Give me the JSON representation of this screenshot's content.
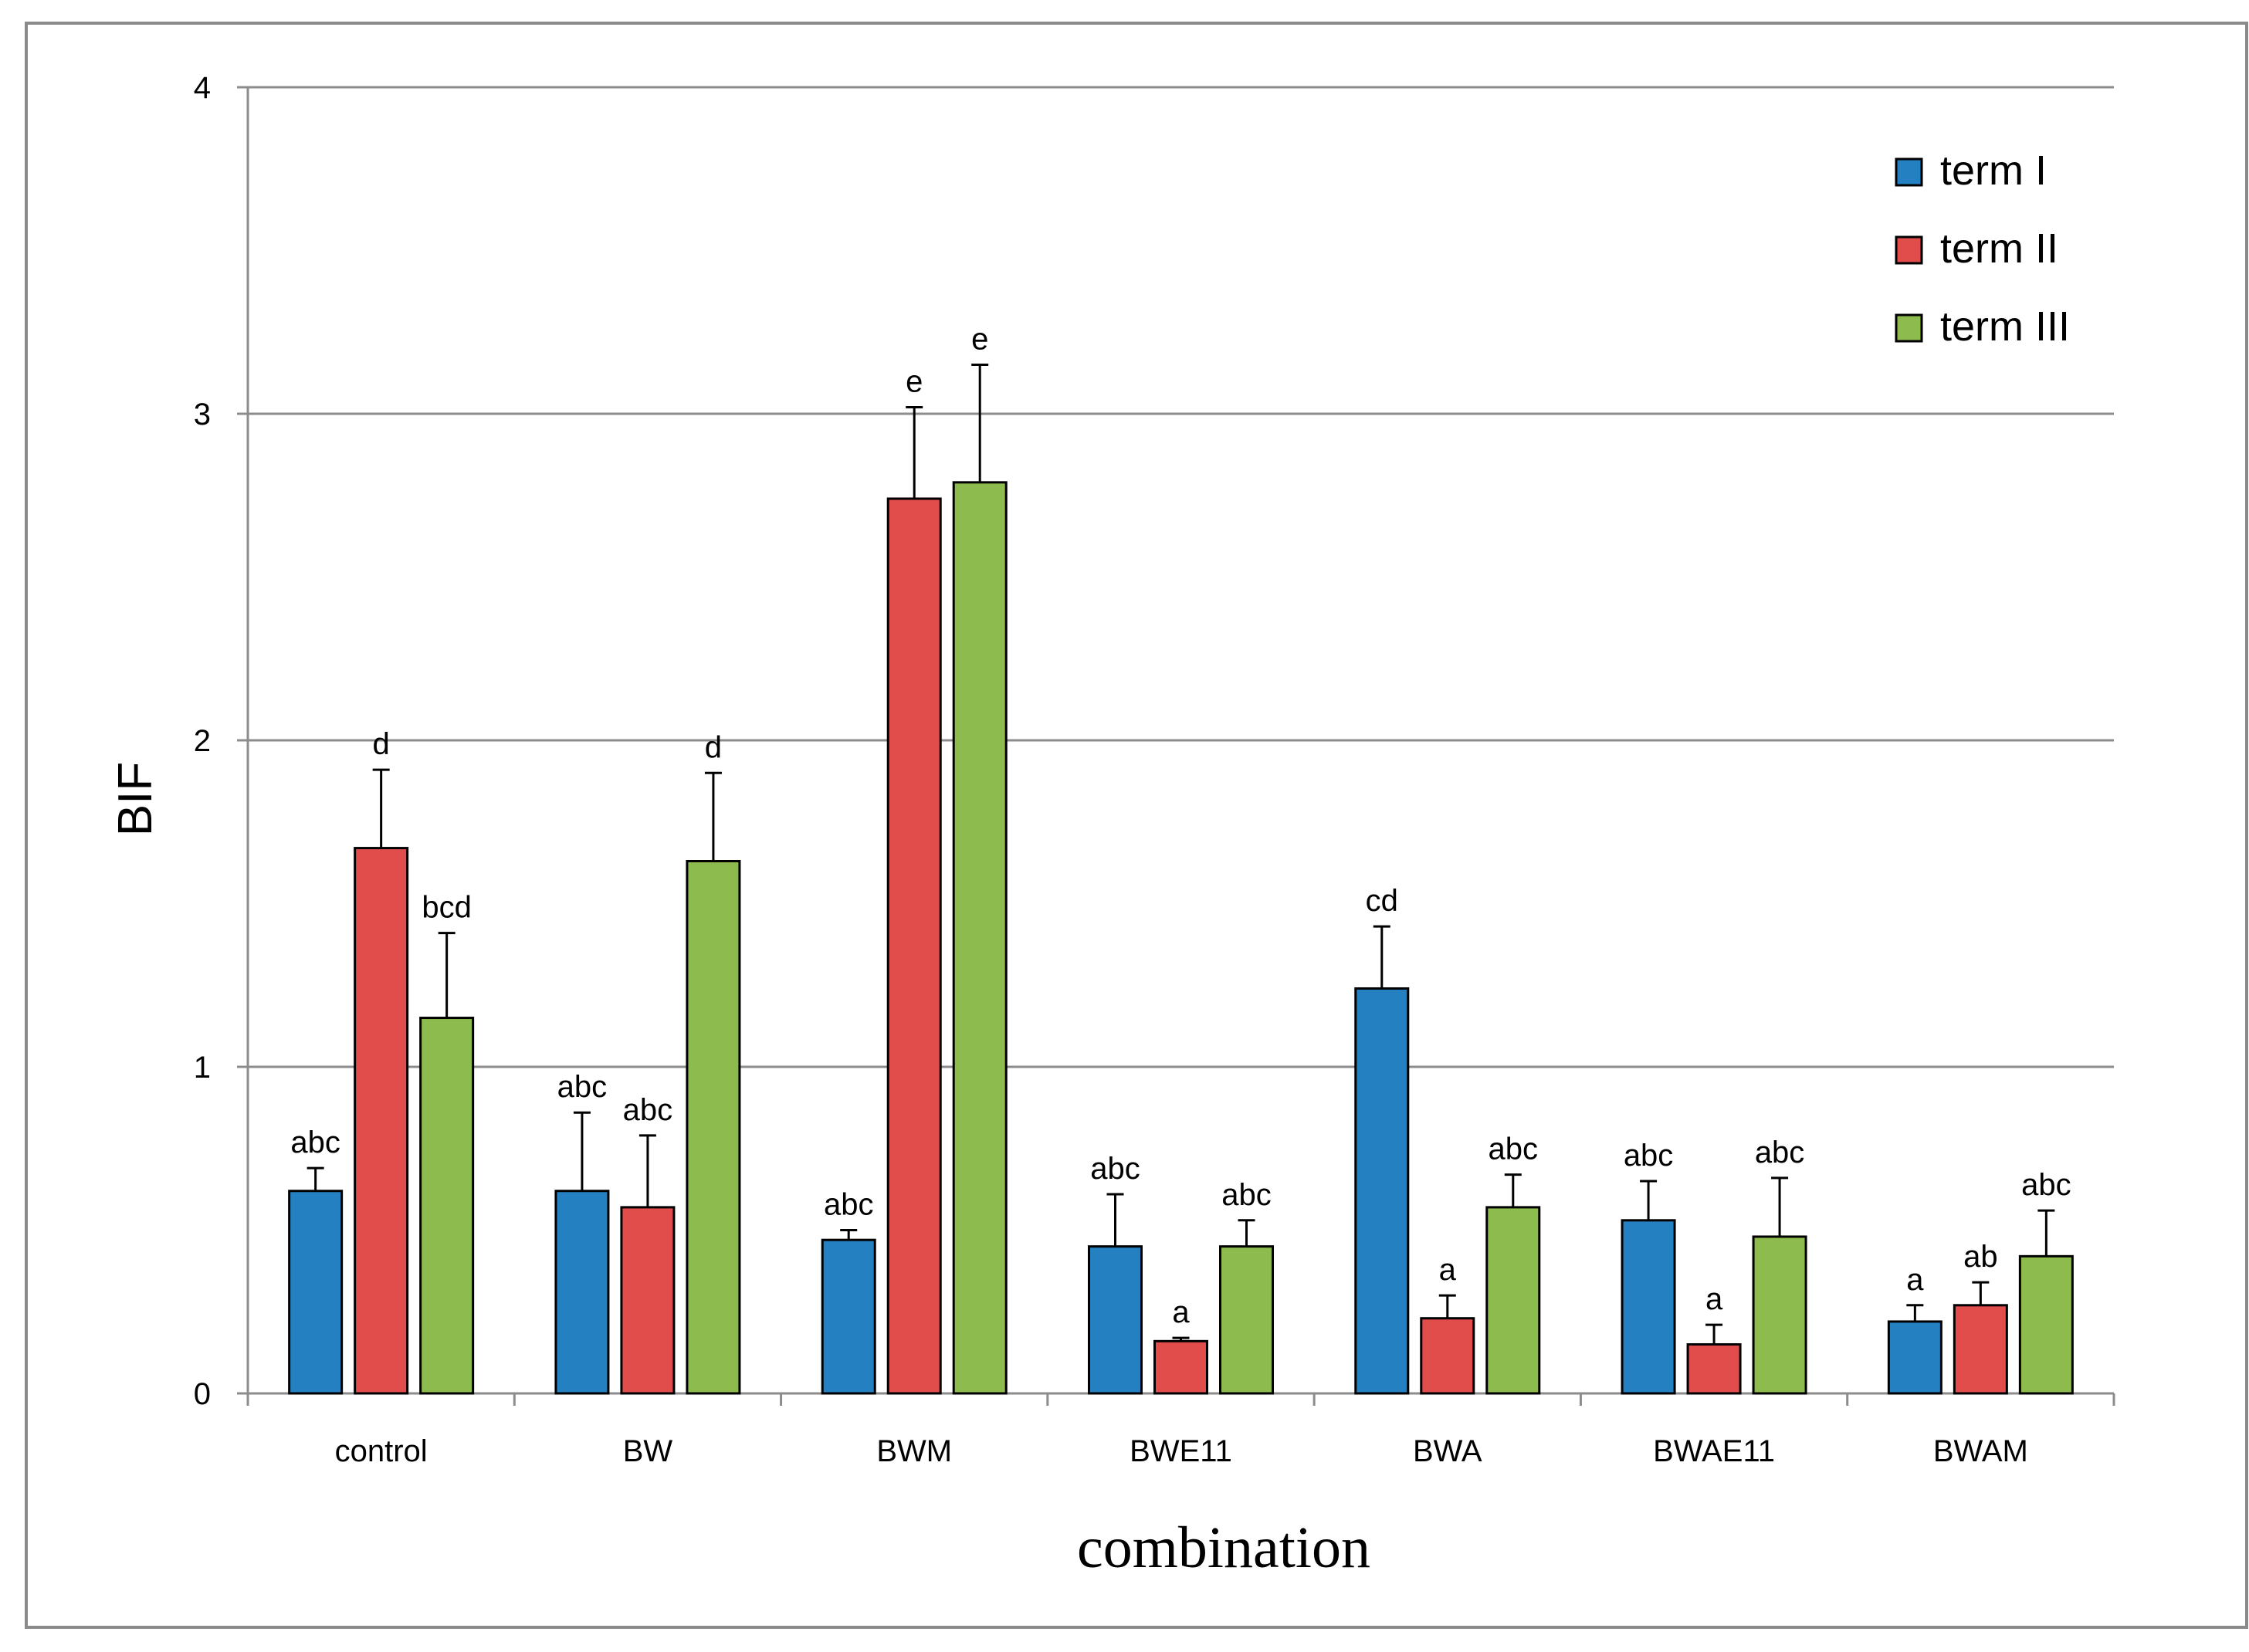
{
  "chart_data": {
    "type": "bar",
    "title": "",
    "xlabel": "combination",
    "ylabel": "BIF",
    "ylim": [
      0,
      4
    ],
    "yticks": [
      0,
      1,
      2,
      3,
      4
    ],
    "grid": true,
    "legend_position": "top-right",
    "categories": [
      "control",
      "BW",
      "BWM",
      "BWE11",
      "BWA",
      "BWAE11",
      "BWAM"
    ],
    "series": [
      {
        "name": "term I",
        "color": "#2580C1",
        "values": [
          0.62,
          0.62,
          0.47,
          0.45,
          1.24,
          0.53,
          0.22
        ],
        "errors": [
          0.07,
          0.24,
          0.03,
          0.16,
          0.19,
          0.12,
          0.05
        ],
        "labels": [
          "abc",
          "abc",
          "abc",
          "abc",
          "cd",
          "abc",
          "a"
        ]
      },
      {
        "name": "term II",
        "color": "#E04D4B",
        "values": [
          1.67,
          0.57,
          2.74,
          0.16,
          0.23,
          0.15,
          0.27
        ],
        "errors": [
          0.24,
          0.22,
          0.28,
          0.01,
          0.07,
          0.06,
          0.07
        ],
        "labels": [
          "d",
          "abc",
          "e",
          "a",
          "a",
          "a",
          "ab"
        ]
      },
      {
        "name": "term III",
        "color": "#8EBB4E",
        "values": [
          1.15,
          1.63,
          2.79,
          0.45,
          0.57,
          0.48,
          0.42
        ],
        "errors": [
          0.26,
          0.27,
          0.36,
          0.08,
          0.1,
          0.18,
          0.14
        ],
        "labels": [
          "bcd",
          "d",
          "e",
          "abc",
          "abc",
          "abc",
          "abc"
        ]
      }
    ]
  }
}
